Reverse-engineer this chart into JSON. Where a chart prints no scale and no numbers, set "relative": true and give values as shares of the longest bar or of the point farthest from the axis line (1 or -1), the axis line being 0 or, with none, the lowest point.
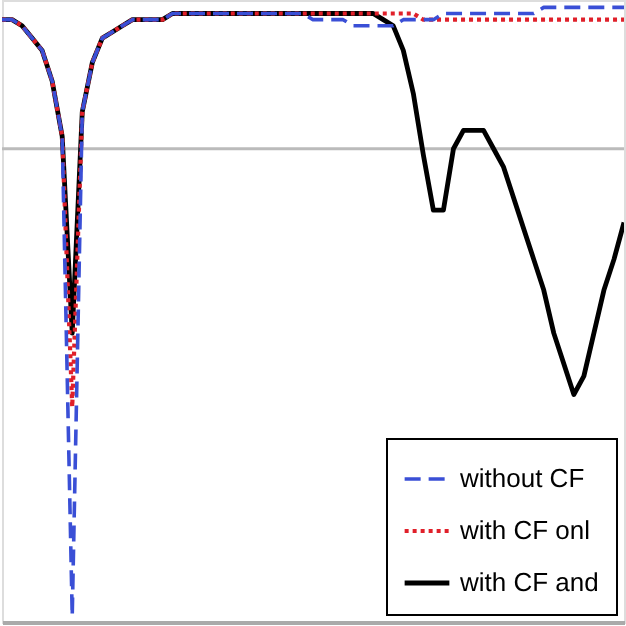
{
  "chart_data": {
    "type": "line",
    "relative": true,
    "categories": [
      null,
      null,
      null,
      null,
      null,
      null,
      null,
      null,
      null,
      null,
      null,
      null,
      null,
      null,
      null,
      null,
      null,
      null,
      null,
      null,
      null,
      null,
      null,
      null,
      null,
      null,
      null,
      null,
      null,
      null,
      null,
      null,
      null,
      null,
      null,
      null,
      null,
      null,
      null,
      null,
      null,
      null,
      null,
      null,
      null,
      null,
      null,
      null,
      null,
      null,
      null,
      null,
      null,
      null,
      null,
      null,
      null,
      null,
      null,
      null,
      null,
      null,
      null
    ],
    "series": [
      {
        "name": "without CF",
        "color": "#3a4fd6",
        "line_style": "dashed",
        "values": [
          0.98,
          0.98,
          0.97,
          0.95,
          0.93,
          0.88,
          0.79,
          0.01,
          0.83,
          0.91,
          0.95,
          0.96,
          0.97,
          0.98,
          0.98,
          0.98,
          0.98,
          0.99,
          0.99,
          0.99,
          0.99,
          0.99,
          0.99,
          0.99,
          0.99,
          0.99,
          0.99,
          0.99,
          0.99,
          0.99,
          0.99,
          0.98,
          0.98,
          0.98,
          0.98,
          0.97,
          0.97,
          0.97,
          0.97,
          0.97,
          0.98,
          0.98,
          0.98,
          0.98,
          0.99,
          0.99,
          0.99,
          0.99,
          0.99,
          0.99,
          0.99,
          0.99,
          0.99,
          0.99,
          1.0,
          1.0,
          1.0,
          1.0,
          1.0,
          1.0,
          1.0,
          1.0,
          1.0
        ]
      },
      {
        "name": "with CF onl",
        "color": "#e0202a",
        "line_style": "dotted",
        "values": [
          0.98,
          0.98,
          0.97,
          0.95,
          0.93,
          0.88,
          0.79,
          0.35,
          0.83,
          0.91,
          0.95,
          0.96,
          0.97,
          0.98,
          0.98,
          0.98,
          0.98,
          0.99,
          0.99,
          0.99,
          0.99,
          0.99,
          0.99,
          0.99,
          0.99,
          0.99,
          0.99,
          0.99,
          0.99,
          0.99,
          0.99,
          0.99,
          0.99,
          0.99,
          0.99,
          0.99,
          0.99,
          0.99,
          0.99,
          0.99,
          0.99,
          0.99,
          0.98,
          0.98,
          0.98,
          0.98,
          0.98,
          0.98,
          0.98,
          0.98,
          0.98,
          0.98,
          0.98,
          0.98,
          0.98,
          0.98,
          0.98,
          0.98,
          0.98,
          0.98,
          0.98,
          0.98,
          0.98
        ]
      },
      {
        "name": "with CF and",
        "color": "#000000",
        "line_style": "solid",
        "values": [
          0.98,
          0.98,
          0.97,
          0.95,
          0.93,
          0.88,
          0.79,
          0.47,
          0.83,
          0.91,
          0.95,
          0.96,
          0.97,
          0.98,
          0.98,
          0.98,
          0.98,
          0.99,
          0.99,
          0.99,
          0.99,
          0.99,
          0.99,
          0.99,
          0.99,
          0.99,
          0.99,
          0.99,
          0.99,
          0.99,
          0.99,
          0.99,
          0.99,
          0.99,
          0.99,
          0.99,
          0.99,
          0.99,
          0.98,
          0.97,
          0.93,
          0.86,
          0.76,
          0.67,
          0.67,
          0.77,
          0.8,
          0.8,
          0.8,
          0.77,
          0.74,
          0.69,
          0.64,
          0.59,
          0.54,
          0.47,
          0.42,
          0.37,
          0.4,
          0.47,
          0.54,
          0.59,
          0.65
        ]
      }
    ],
    "ref_lines": [
      {
        "axis": "y",
        "value": 0.77,
        "color": "#bbbbbb"
      }
    ],
    "legend": "bottom right",
    "tick_labels": false
  }
}
